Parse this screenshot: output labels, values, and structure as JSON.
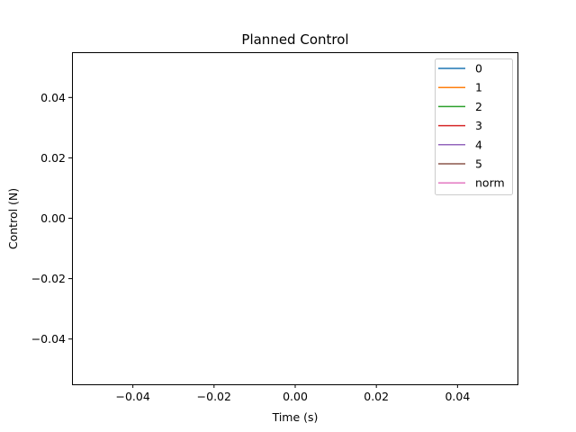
{
  "chart_data": {
    "type": "line",
    "title": "Planned Control",
    "xlabel": "Time (s)",
    "ylabel": "Control (N)",
    "xlim": [
      -0.055,
      0.055
    ],
    "ylim": [
      -0.055,
      0.055
    ],
    "xticks": [
      -0.04,
      -0.02,
      0.0,
      0.02,
      0.04
    ],
    "xtick_labels": [
      "−0.04",
      "−0.02",
      "0.00",
      "0.02",
      "0.04"
    ],
    "yticks": [
      0.04,
      0.02,
      0.0,
      -0.02,
      -0.04
    ],
    "ytick_labels": [
      "0.04",
      "0.02",
      "0.00",
      "−0.02",
      "−0.04"
    ],
    "grid": false,
    "legend_position": "top-right",
    "series": [
      {
        "name": "0",
        "color": "#1f77b4",
        "x": [],
        "y": []
      },
      {
        "name": "1",
        "color": "#ff7f0e",
        "x": [],
        "y": []
      },
      {
        "name": "2",
        "color": "#2ca02c",
        "x": [],
        "y": []
      },
      {
        "name": "3",
        "color": "#d62728",
        "x": [],
        "y": []
      },
      {
        "name": "4",
        "color": "#9467bd",
        "x": [],
        "y": []
      },
      {
        "name": "5",
        "color": "#8c564b",
        "x": [],
        "y": []
      },
      {
        "name": "norm",
        "color": "#e377c2",
        "x": [],
        "y": []
      }
    ]
  }
}
